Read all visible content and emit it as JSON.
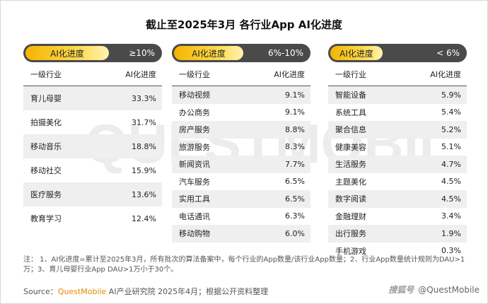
{
  "title": "截止至2025年3月 各行业App AI化进度",
  "watermark_text": "QUESTMOBILE",
  "chart_data": [
    {
      "type": "table",
      "badge": "AI化进度",
      "range": "≥10%",
      "col_headers": [
        "一级行业",
        "AI化进度"
      ],
      "categories": [
        "育儿母婴",
        "拍摄美化",
        "移动音乐",
        "移动社交",
        "医疗服务",
        "教育学习"
      ],
      "values": [
        33.3,
        31.7,
        18.8,
        15.9,
        13.6,
        12.4
      ],
      "display": [
        "33.3%",
        "31.7%",
        "18.8%",
        "15.9%",
        "13.6%",
        "12.4%"
      ]
    },
    {
      "type": "table",
      "badge": "AI化进度",
      "range": "6%-10%",
      "col_headers": [
        "一级行业",
        "AI化进度"
      ],
      "categories": [
        "移动视频",
        "办公商务",
        "房产服务",
        "旅游服务",
        "新闻资讯",
        "汽车服务",
        "实用工具",
        "电话通讯",
        "移动购物"
      ],
      "values": [
        9.1,
        9.1,
        8.8,
        8.3,
        7.7,
        6.5,
        6.5,
        6.3,
        6.0
      ],
      "display": [
        "9.1%",
        "9.1%",
        "8.8%",
        "8.3%",
        "7.7%",
        "6.5%",
        "6.5%",
        "6.3%",
        "6.0%"
      ]
    },
    {
      "type": "table",
      "badge": "AI化进度",
      "range": "< 6%",
      "col_headers": [
        "一级行业",
        "AI化进度"
      ],
      "categories": [
        "智能设备",
        "系统工具",
        "聚合信息",
        "健康美容",
        "生活服务",
        "主题美化",
        "数字阅读",
        "金融理财",
        "出行服务",
        "手机游戏"
      ],
      "values": [
        5.9,
        5.4,
        5.2,
        5.1,
        4.7,
        4.5,
        4.5,
        3.4,
        1.9,
        0.3
      ],
      "display": [
        "5.9%",
        "5.4%",
        "5.2%",
        "5.1%",
        "4.7%",
        "4.5%",
        "4.5%",
        "3.4%",
        "1.9%",
        "0.3%"
      ]
    }
  ],
  "note": "注：  1、AI化进度=累计至2025年3月，所有批次的算法备案中，每个行业的App数量/该行业App数量；2、行业App数量统计规则为DAU>1万；3、育儿母婴行业App DAU>1万小于30个。",
  "source": {
    "label": "Source：",
    "brand": "QuestMobile",
    "rest": " AI产业研究院 2025年4月；根据公开资料整理"
  },
  "logo": {
    "mark": "搜狐号",
    "handle": "@QuestMobile"
  }
}
